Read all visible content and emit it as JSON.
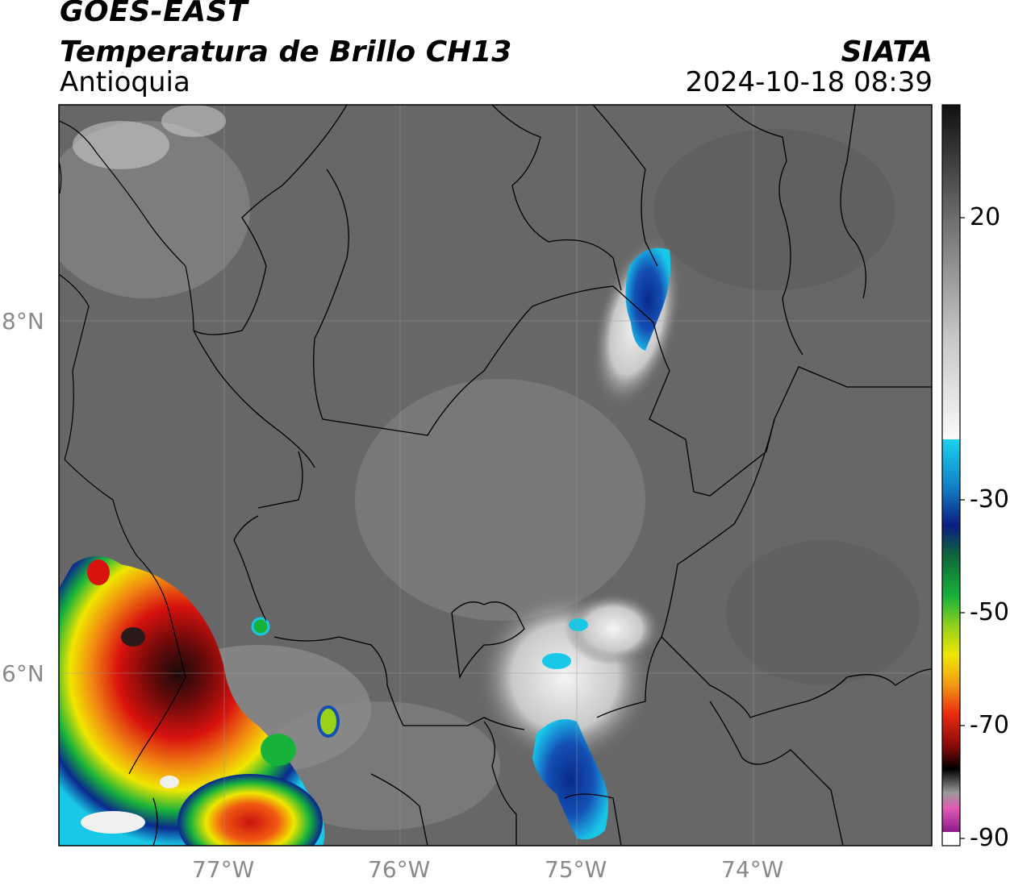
{
  "header": {
    "satellite": "GOES-EAST",
    "product": "Temperatura de Brillo CH13",
    "region": "Antioquia",
    "organization": "SIATA",
    "timestamp": "2024-10-18 08:39"
  },
  "map": {
    "lat_ticks": [
      "8°N",
      "6°N"
    ],
    "lon_ticks": [
      "77°W",
      "76°W",
      "75°W",
      "74°W"
    ],
    "grid": true,
    "background_color": "#676767",
    "border_color": "#000000"
  },
  "colorbar": {
    "tick_labels": [
      "20",
      "-30",
      "-50",
      "-70",
      "-90"
    ],
    "colors": {
      "warm_gray_top": "#151515",
      "light": "#f2f2f2",
      "cyan": "#19c8e6",
      "blue": "#0a2a8c",
      "green": "#17b23a",
      "yellow": "#f0e600",
      "orange": "#f28a12",
      "red": "#d8120e",
      "dark_red": "#5a0a0a",
      "black": "#000000",
      "pink": "#e25ab4",
      "purple": "#8a1a8a"
    }
  },
  "icons": {
    "map_area": "satellite-map",
    "colorbar": "temperature-colorbar"
  }
}
